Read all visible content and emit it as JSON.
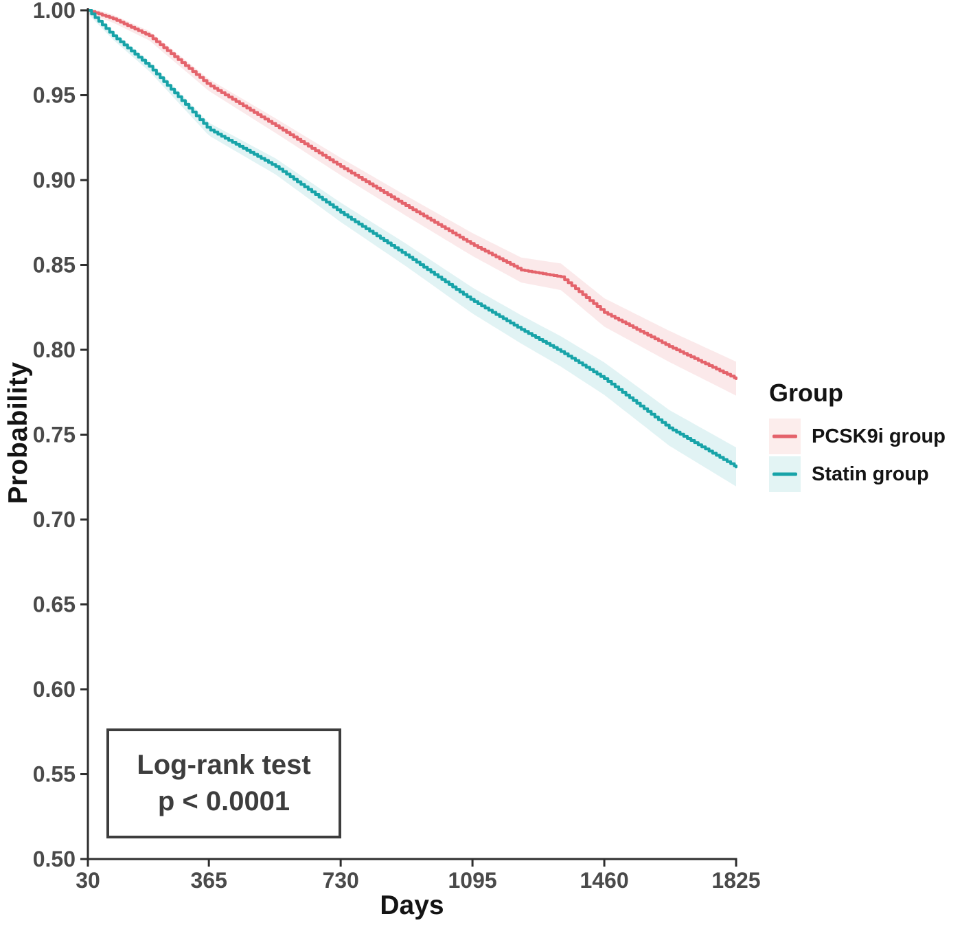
{
  "figure": {
    "background": "#ffffff",
    "y_axis_title": "Probability",
    "x_axis_title": "Days",
    "axis_color": "#2e2e2e",
    "tick_label_color": "#4a4a4a",
    "annotation": {
      "line1": "Log-rank test",
      "line2": "p < 0.0001"
    },
    "legend": {
      "title": "Group",
      "items": [
        {
          "label": "PCSK9i group",
          "color": "#E4636B",
          "key_fill": "#FCEDEC"
        },
        {
          "label": "Statin group",
          "color": "#17A3A8",
          "key_fill": "#E3F4F4"
        }
      ]
    }
  },
  "chart_data": {
    "type": "line",
    "subtype": "kaplan-meier-survival-curve",
    "title": "",
    "xlabel": "Days",
    "ylabel": "Probability",
    "xlim": [
      30,
      1825
    ],
    "ylim": [
      0.5,
      1.0
    ],
    "x_ticks": [
      30,
      365,
      730,
      1095,
      1460,
      1825
    ],
    "y_ticks": [
      0.5,
      0.55,
      0.6,
      0.65,
      0.7,
      0.75,
      0.8,
      0.85,
      0.9,
      0.95,
      1.0
    ],
    "grid": false,
    "legend_position": "right",
    "legend_title": "Group",
    "annotation": "Log-rank test p < 0.0001",
    "x": [
      30,
      100,
      200,
      365,
      550,
      730,
      910,
      1095,
      1230,
      1340,
      1460,
      1640,
      1825
    ],
    "series": [
      {
        "name": "PCSK9i group",
        "color": "#E4636B",
        "band_color": "rgba(228,99,107,0.14)",
        "values": [
          1.0,
          0.995,
          0.985,
          0.956,
          0.932,
          0.908,
          0.885,
          0.862,
          0.847,
          0.843,
          0.822,
          0.802,
          0.783
        ],
        "ci_halfwidth_start": 0.002,
        "ci_halfwidth_end": 0.01
      },
      {
        "name": "Statin group",
        "color": "#17A3A8",
        "band_color": "rgba(23,163,168,0.13)",
        "values": [
          1.0,
          0.985,
          0.967,
          0.93,
          0.908,
          0.881,
          0.856,
          0.829,
          0.812,
          0.799,
          0.783,
          0.754,
          0.731
        ],
        "ci_halfwidth_start": 0.002,
        "ci_halfwidth_end": 0.0115
      }
    ]
  }
}
